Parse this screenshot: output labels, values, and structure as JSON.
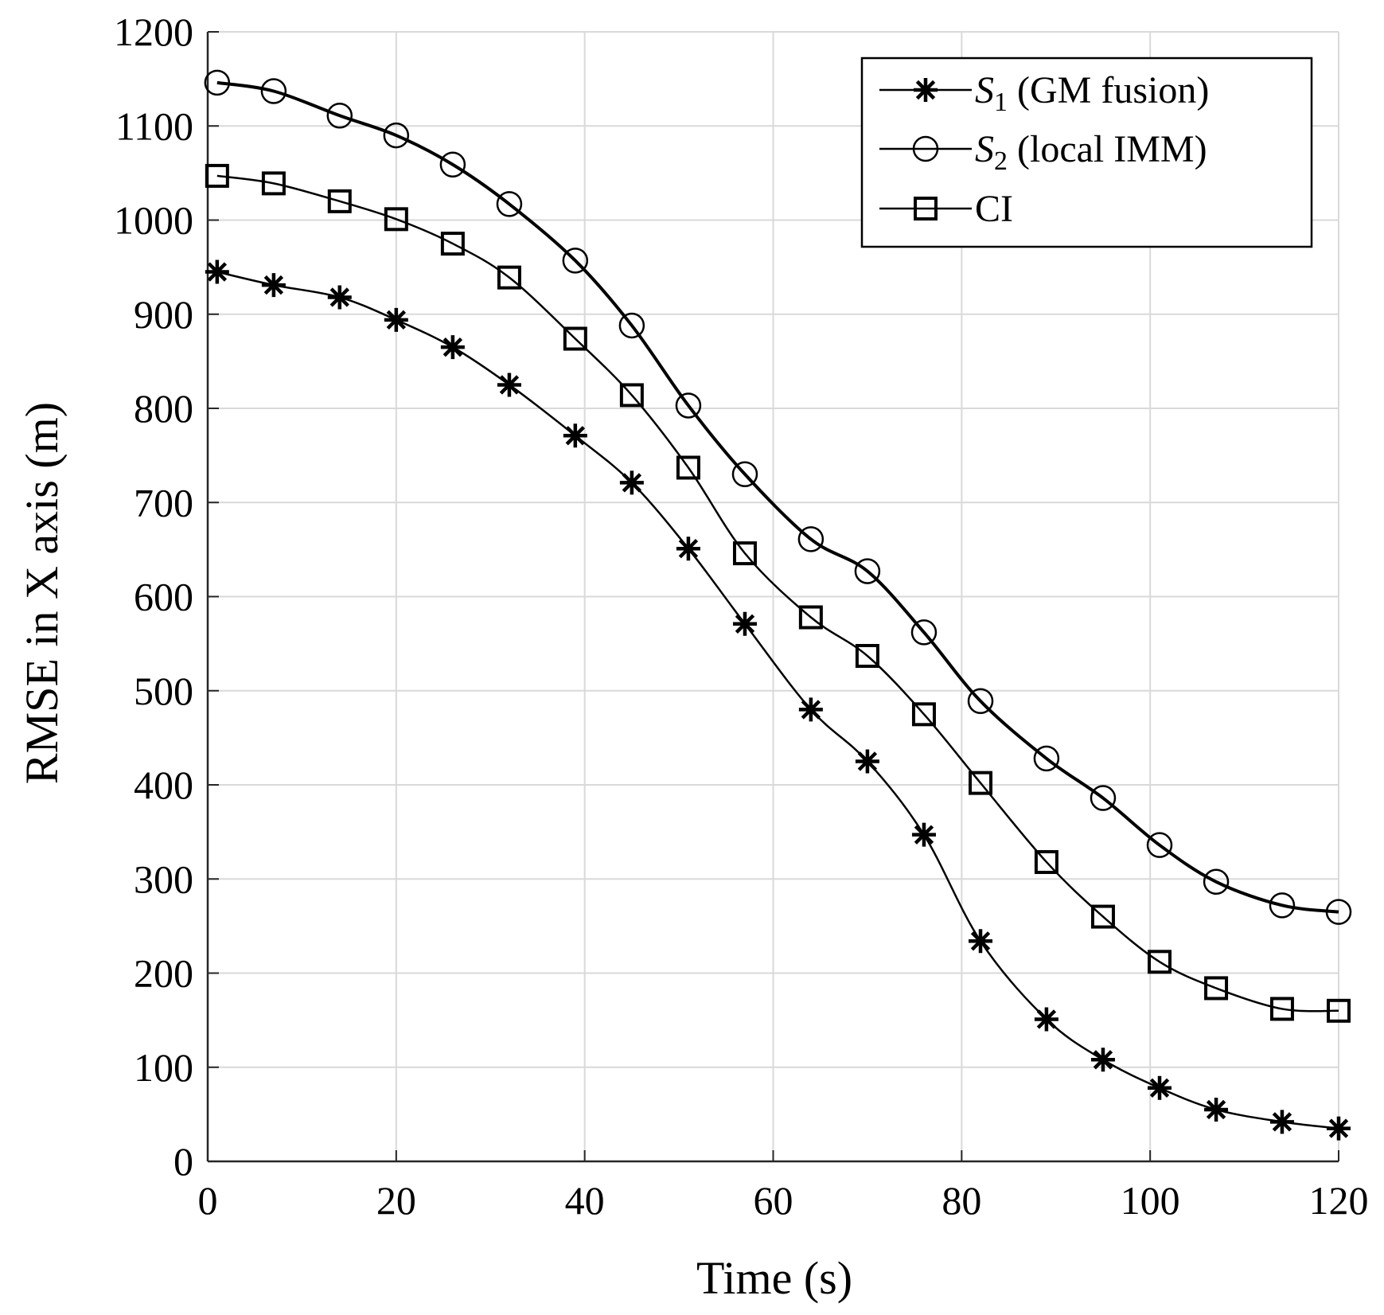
{
  "chart_data": {
    "type": "line",
    "title": "",
    "xlabel": "Time (s)",
    "ylabel": "RMSE in X axis (m)",
    "xlim": [
      0,
      120
    ],
    "ylim": [
      0,
      1200
    ],
    "xticks": [
      0,
      20,
      40,
      60,
      80,
      100,
      120
    ],
    "yticks": [
      0,
      100,
      200,
      300,
      400,
      500,
      600,
      700,
      800,
      900,
      1000,
      1100,
      1200
    ],
    "xtick_labels": [
      "0",
      "20",
      "40",
      "60",
      "80",
      "100",
      "120"
    ],
    "ytick_labels": [
      "0",
      "100",
      "200",
      "300",
      "400",
      "500",
      "600",
      "700",
      "800",
      "900",
      "1000",
      "1100",
      "1200"
    ],
    "grid": true,
    "legend_position": "top-right",
    "legend": [
      {
        "symbol": "S",
        "subscript": "1",
        "rest": " (GM fusion)",
        "marker": "asterisk"
      },
      {
        "symbol": "S",
        "subscript": "2",
        "rest": " (local IMM)",
        "marker": "circle"
      },
      {
        "symbol": "CI",
        "subscript": "",
        "rest": "",
        "marker": "square"
      }
    ],
    "series": [
      {
        "name": "S1 (GM fusion)",
        "marker": "asterisk",
        "line_weight": "normal",
        "x": [
          1,
          7,
          14,
          20,
          26,
          32,
          39,
          45,
          51,
          57,
          64,
          70,
          76,
          82,
          89,
          95,
          101,
          107,
          114,
          120
        ],
        "y": [
          945,
          931,
          918,
          894,
          865,
          825,
          771,
          721,
          651,
          571,
          480,
          425,
          347,
          234,
          151,
          108,
          78,
          55,
          42,
          35
        ]
      },
      {
        "name": "S2 (local IMM)",
        "marker": "circle",
        "line_weight": "bold",
        "x": [
          1,
          7,
          14,
          20,
          26,
          32,
          39,
          45,
          51,
          57,
          64,
          70,
          76,
          82,
          89,
          95,
          101,
          107,
          114,
          120
        ],
        "y": [
          1146,
          1137,
          1111,
          1090,
          1059,
          1017,
          957,
          888,
          803,
          730,
          661,
          627,
          562,
          489,
          428,
          386,
          336,
          297,
          272,
          265
        ]
      },
      {
        "name": "CI",
        "marker": "square",
        "line_weight": "normal",
        "x": [
          1,
          7,
          14,
          20,
          26,
          32,
          39,
          45,
          51,
          57,
          64,
          70,
          76,
          82,
          89,
          95,
          101,
          107,
          114,
          120
        ],
        "y": [
          1047,
          1039,
          1020,
          1001,
          975,
          939,
          874,
          814,
          737,
          646,
          578,
          537,
          475,
          402,
          318,
          260,
          212,
          184,
          162,
          160
        ]
      }
    ]
  }
}
